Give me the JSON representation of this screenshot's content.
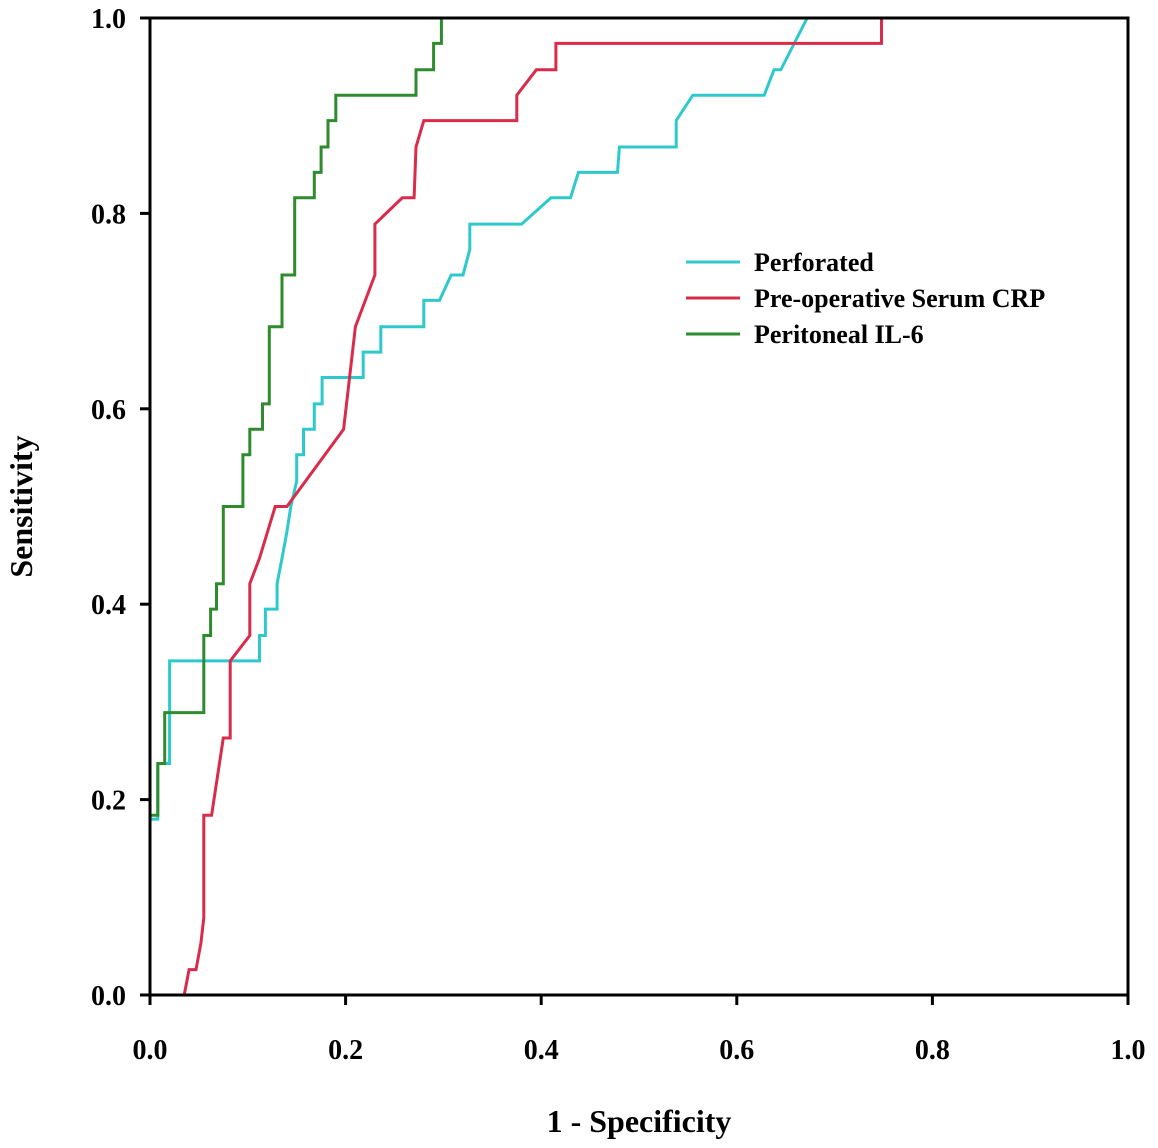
{
  "chart_data": {
    "type": "line",
    "xlabel": "1 - Specificity",
    "ylabel": "Sensitivity",
    "xlim": [
      0.0,
      1.0
    ],
    "ylim": [
      0.0,
      1.0
    ],
    "xticks": [
      "0.0",
      "0.2",
      "0.4",
      "0.6",
      "0.8",
      "1.0"
    ],
    "yticks": [
      "0.0",
      "0.2",
      "0.4",
      "0.6",
      "0.8",
      "1.0"
    ],
    "grid": false,
    "legend_position": "right",
    "series": [
      {
        "name": "Perforated",
        "color": "#2ec9cc",
        "points": [
          [
            0.0,
            0.0
          ],
          [
            0.0,
            0.18
          ],
          [
            0.008,
            0.18
          ],
          [
            0.008,
            0.237
          ],
          [
            0.02,
            0.237
          ],
          [
            0.02,
            0.342
          ],
          [
            0.112,
            0.342
          ],
          [
            0.112,
            0.368
          ],
          [
            0.118,
            0.368
          ],
          [
            0.118,
            0.395
          ],
          [
            0.13,
            0.395
          ],
          [
            0.13,
            0.421
          ],
          [
            0.135,
            0.447
          ],
          [
            0.14,
            0.474
          ],
          [
            0.144,
            0.5
          ],
          [
            0.15,
            0.526
          ],
          [
            0.15,
            0.553
          ],
          [
            0.157,
            0.553
          ],
          [
            0.157,
            0.579
          ],
          [
            0.168,
            0.579
          ],
          [
            0.168,
            0.605
          ],
          [
            0.176,
            0.605
          ],
          [
            0.176,
            0.632
          ],
          [
            0.218,
            0.632
          ],
          [
            0.218,
            0.658
          ],
          [
            0.236,
            0.658
          ],
          [
            0.236,
            0.684
          ],
          [
            0.28,
            0.684
          ],
          [
            0.28,
            0.711
          ],
          [
            0.296,
            0.711
          ],
          [
            0.308,
            0.737
          ],
          [
            0.32,
            0.737
          ],
          [
            0.327,
            0.763
          ],
          [
            0.327,
            0.789
          ],
          [
            0.38,
            0.789
          ],
          [
            0.41,
            0.816
          ],
          [
            0.43,
            0.816
          ],
          [
            0.438,
            0.842
          ],
          [
            0.478,
            0.842
          ],
          [
            0.48,
            0.868
          ],
          [
            0.538,
            0.868
          ],
          [
            0.538,
            0.895
          ],
          [
            0.555,
            0.921
          ],
          [
            0.628,
            0.921
          ],
          [
            0.638,
            0.947
          ],
          [
            0.645,
            0.947
          ],
          [
            0.672,
            1.0
          ],
          [
            1.0,
            1.0
          ]
        ]
      },
      {
        "name": "Pre-operative Serum CRP",
        "color": "#d92b4a",
        "points": [
          [
            0.0,
            0.0
          ],
          [
            0.035,
            0.0
          ],
          [
            0.04,
            0.026
          ],
          [
            0.047,
            0.026
          ],
          [
            0.052,
            0.053
          ],
          [
            0.055,
            0.079
          ],
          [
            0.055,
            0.184
          ],
          [
            0.063,
            0.184
          ],
          [
            0.075,
            0.263
          ],
          [
            0.082,
            0.263
          ],
          [
            0.082,
            0.342
          ],
          [
            0.102,
            0.368
          ],
          [
            0.102,
            0.421
          ],
          [
            0.112,
            0.447
          ],
          [
            0.128,
            0.5
          ],
          [
            0.14,
            0.5
          ],
          [
            0.198,
            0.579
          ],
          [
            0.21,
            0.684
          ],
          [
            0.23,
            0.737
          ],
          [
            0.23,
            0.789
          ],
          [
            0.258,
            0.816
          ],
          [
            0.27,
            0.816
          ],
          [
            0.272,
            0.868
          ],
          [
            0.28,
            0.895
          ],
          [
            0.375,
            0.895
          ],
          [
            0.375,
            0.921
          ],
          [
            0.395,
            0.947
          ],
          [
            0.415,
            0.947
          ],
          [
            0.415,
            0.974
          ],
          [
            0.748,
            0.974
          ],
          [
            0.748,
            1.0
          ],
          [
            1.0,
            1.0
          ]
        ]
      },
      {
        "name": "Peritoneal IL-6",
        "color": "#2e8b2e",
        "points": [
          [
            0.0,
            0.0
          ],
          [
            0.0,
            0.184
          ],
          [
            0.008,
            0.184
          ],
          [
            0.008,
            0.237
          ],
          [
            0.015,
            0.237
          ],
          [
            0.015,
            0.289
          ],
          [
            0.055,
            0.289
          ],
          [
            0.055,
            0.368
          ],
          [
            0.062,
            0.368
          ],
          [
            0.062,
            0.395
          ],
          [
            0.068,
            0.395
          ],
          [
            0.068,
            0.421
          ],
          [
            0.075,
            0.421
          ],
          [
            0.075,
            0.5
          ],
          [
            0.095,
            0.5
          ],
          [
            0.095,
            0.553
          ],
          [
            0.102,
            0.553
          ],
          [
            0.102,
            0.579
          ],
          [
            0.115,
            0.579
          ],
          [
            0.115,
            0.605
          ],
          [
            0.122,
            0.605
          ],
          [
            0.122,
            0.684
          ],
          [
            0.135,
            0.684
          ],
          [
            0.135,
            0.737
          ],
          [
            0.148,
            0.737
          ],
          [
            0.148,
            0.816
          ],
          [
            0.168,
            0.816
          ],
          [
            0.168,
            0.842
          ],
          [
            0.175,
            0.842
          ],
          [
            0.175,
            0.868
          ],
          [
            0.182,
            0.868
          ],
          [
            0.182,
            0.895
          ],
          [
            0.19,
            0.895
          ],
          [
            0.19,
            0.921
          ],
          [
            0.272,
            0.921
          ],
          [
            0.272,
            0.947
          ],
          [
            0.29,
            0.947
          ],
          [
            0.29,
            0.974
          ],
          [
            0.298,
            0.974
          ],
          [
            0.298,
            1.0
          ],
          [
            1.0,
            1.0
          ]
        ]
      }
    ]
  }
}
